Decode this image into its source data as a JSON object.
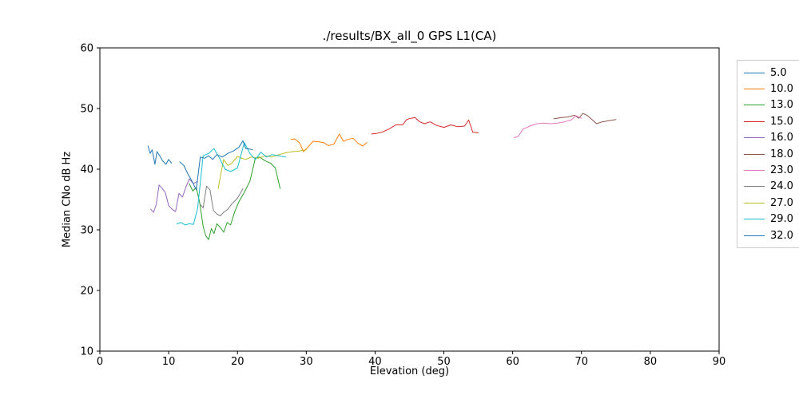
{
  "chart_data": {
    "type": "line",
    "title": "./results/BX_all_0 GPS L1(CA)",
    "xlabel": "Elevation (deg)",
    "ylabel": "Median CNo dB Hz",
    "xlim": [
      0,
      90
    ],
    "ylim": [
      10,
      60
    ],
    "xticks": [
      0,
      10,
      20,
      30,
      40,
      50,
      60,
      70,
      80,
      90
    ],
    "yticks": [
      10,
      20,
      30,
      40,
      50,
      60
    ],
    "grid": false,
    "legend_position": "right-outside",
    "series": [
      {
        "name": "5.0",
        "color": "#1f77b4",
        "x": [
          7.0,
          7.3,
          7.6,
          8.0,
          8.3,
          8.7,
          9.1,
          9.6,
          10.0,
          10.4
        ],
        "y": [
          43.8,
          42.6,
          43.2,
          40.8,
          42.9,
          42.2,
          41.4,
          40.8,
          41.6,
          41.0
        ]
      },
      {
        "name": "10.0",
        "color": "#ff7f0e",
        "x": [
          27.8,
          28.3,
          29.0,
          29.6,
          30.2,
          31.0,
          31.8,
          32.5,
          33.2,
          34.0,
          34.8,
          35.4,
          36.0,
          36.8,
          37.5,
          38.2,
          38.8
        ],
        "y": [
          44.9,
          45.0,
          44.4,
          42.9,
          43.6,
          44.6,
          44.5,
          44.4,
          43.9,
          44.1,
          45.8,
          44.6,
          44.9,
          45.1,
          44.3,
          43.8,
          44.4
        ]
      },
      {
        "name": "13.0",
        "color": "#2ca02c",
        "x": [
          13.0,
          13.5,
          14.0,
          14.5,
          15.0,
          15.4,
          15.8,
          16.2,
          16.6,
          17.0,
          17.5,
          18.0,
          18.5,
          19.0,
          19.6,
          20.2,
          21.0,
          21.8,
          22.6,
          23.2,
          24.0,
          24.8,
          25.5,
          26.2
        ],
        "y": [
          37.6,
          36.4,
          37.0,
          34.5,
          30.6,
          29.0,
          28.4,
          30.2,
          29.4,
          31.0,
          30.4,
          29.6,
          31.2,
          30.8,
          33.0,
          34.6,
          36.2,
          38.0,
          41.8,
          42.0,
          41.4,
          41.0,
          40.2,
          36.8
        ]
      },
      {
        "name": "15.0",
        "color": "#d62728",
        "x": [
          39.5,
          40.2,
          41.0,
          42.0,
          43.0,
          44.0,
          44.6,
          45.2,
          45.8,
          46.5,
          47.2,
          48.0,
          49.0,
          50.0,
          51.0,
          52.0,
          53.0,
          53.6,
          54.2,
          55.0
        ],
        "y": [
          45.8,
          45.9,
          46.1,
          46.6,
          47.3,
          47.3,
          48.2,
          48.4,
          48.5,
          47.8,
          47.5,
          47.8,
          47.2,
          46.9,
          47.3,
          47.0,
          47.1,
          48.1,
          46.1,
          46.0
        ]
      },
      {
        "name": "16.0",
        "color": "#9467bd",
        "x": [
          7.4,
          7.8,
          8.2,
          8.6,
          9.0,
          9.5,
          10.0,
          10.5,
          11.0,
          11.5,
          12.0,
          12.5,
          13.0,
          13.6,
          14.2
        ],
        "y": [
          33.4,
          32.9,
          34.2,
          37.4,
          36.9,
          36.2,
          34.0,
          33.4,
          33.0,
          36.0,
          35.4,
          37.0,
          38.4,
          37.6,
          38.0
        ]
      },
      {
        "name": "18.0",
        "color": "#8c564b",
        "x": [
          66.0,
          67.0,
          68.0,
          69.0,
          69.6,
          70.2,
          70.8,
          71.5,
          72.2,
          73.0,
          74.0,
          75.0
        ],
        "y": [
          48.3,
          48.5,
          48.6,
          48.9,
          48.4,
          49.2,
          48.9,
          48.2,
          47.5,
          47.8,
          48.0,
          48.2
        ]
      },
      {
        "name": "23.0",
        "color": "#e377c2",
        "x": [
          60.2,
          60.8,
          61.5,
          62.5,
          63.5,
          64.5,
          65.5,
          66.5,
          67.5,
          68.5,
          69.2,
          70.0
        ],
        "y": [
          45.2,
          45.4,
          46.6,
          47.1,
          47.5,
          47.6,
          47.5,
          47.6,
          47.8,
          48.1,
          48.8,
          48.4
        ]
      },
      {
        "name": "24.0",
        "color": "#7f7f7f",
        "x": [
          14.6,
          15.0,
          15.5,
          16.0,
          16.5,
          17.0,
          17.5,
          18.0,
          18.6,
          19.2,
          20.0,
          20.8
        ],
        "y": [
          34.2,
          33.6,
          37.2,
          36.6,
          33.2,
          32.6,
          32.3,
          32.9,
          33.4,
          34.3,
          35.2,
          36.8
        ]
      },
      {
        "name": "27.0",
        "color": "#bcbd22",
        "x": [
          17.2,
          17.6,
          18.0,
          18.6,
          19.2,
          20.0,
          20.6,
          21.2,
          22.0,
          23.0,
          24.0,
          25.0,
          26.0,
          27.0,
          28.0,
          29.0,
          30.0
        ],
        "y": [
          36.8,
          39.4,
          41.6,
          40.6,
          41.0,
          42.1,
          41.8,
          41.6,
          42.0,
          41.8,
          42.2,
          42.0,
          42.4,
          42.7,
          42.9,
          43.0,
          43.2
        ]
      },
      {
        "name": "29.0",
        "color": "#17becf",
        "x": [
          11.2,
          11.8,
          12.4,
          13.0,
          13.6,
          14.2,
          15.0,
          15.8,
          16.6,
          17.4,
          18.2,
          19.0,
          20.0,
          21.0,
          21.8,
          22.6,
          23.4,
          24.2,
          25.0,
          26.0,
          27.0
        ],
        "y": [
          31.0,
          31.2,
          30.8,
          31.0,
          30.9,
          33.5,
          42.2,
          42.6,
          43.4,
          41.8,
          40.0,
          39.6,
          40.2,
          44.4,
          42.6,
          41.6,
          42.8,
          42.0,
          42.4,
          42.2,
          42.0
        ]
      },
      {
        "name": "32.0",
        "color": "#1f77b4",
        "x": [
          11.6,
          12.2,
          12.8,
          13.4,
          14.0,
          14.6,
          15.2,
          15.8,
          16.4,
          17.0,
          17.8,
          18.6,
          19.4,
          20.2,
          20.8,
          21.2,
          21.8,
          22.2
        ],
        "y": [
          41.2,
          40.6,
          39.2,
          38.0,
          36.6,
          42.0,
          41.8,
          42.2,
          41.6,
          42.4,
          42.0,
          42.6,
          43.0,
          43.6,
          44.7,
          43.4,
          43.3,
          43.2
        ]
      }
    ]
  }
}
